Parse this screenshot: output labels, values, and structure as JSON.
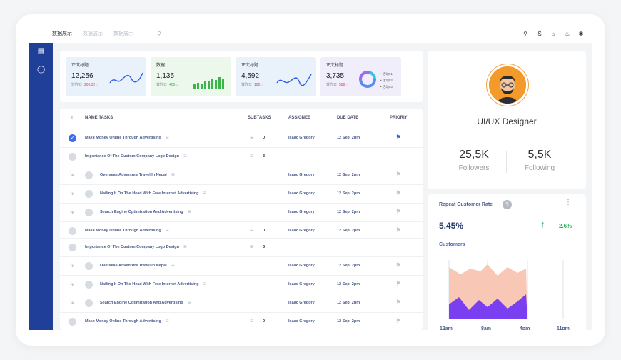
{
  "topbar": {
    "tabs": [
      "数据展示",
      "数据展示",
      "数据展示"
    ],
    "icons": [
      "search-icon",
      "translate-icon",
      "brightness-icon",
      "bell-icon",
      "settings-icon"
    ]
  },
  "sidebar": {
    "icons": [
      "document-icon",
      "bulb-icon"
    ]
  },
  "stats": [
    {
      "title": "正文标题",
      "value": "12,256",
      "sub": "较昨日",
      "delta": "206.32 ↑",
      "bg": "#e9f1fb",
      "chart": "wave"
    },
    {
      "title": "数据",
      "value": "1,135",
      "sub": "较昨日",
      "delta": "405 ↓",
      "bg": "#ecf8ec",
      "chart": "bars"
    },
    {
      "title": "正文标题",
      "value": "4,592",
      "sub": "较昨日",
      "delta": "122 ↑",
      "bg": "#e9f1fb",
      "chart": "wave"
    },
    {
      "title": "正文标题",
      "value": "3,735",
      "sub": "较昨日",
      "delta": "588 ↑",
      "bg": "#f1eefb",
      "chart": "donut",
      "legend": [
        "活动01",
        "活动02",
        "活动03"
      ]
    }
  ],
  "tasks": {
    "headers": {
      "name": "NAME TASKS",
      "subtasks": "SUBTASKS",
      "assignee": "ASSIGNEE",
      "due": "DUE DATE",
      "priority": "PRIORIY"
    },
    "rows": [
      {
        "name": "Make Money Online Through Advertising",
        "sub": false,
        "done": true,
        "count": "0",
        "assignee": "Isaac Gregory",
        "due": "12 Sep, 2pm",
        "flag": "blue"
      },
      {
        "name": "Importance Of The Custom Company Logo Design",
        "sub": false,
        "done": false,
        "count": "3",
        "assignee": "",
        "due": "",
        "flag": ""
      },
      {
        "name": "Overseas Adventure Travel In Nepal",
        "sub": true,
        "done": false,
        "count": "",
        "assignee": "Isaac Gregory",
        "due": "12 Sep, 2pm",
        "flag": "grey"
      },
      {
        "name": "Nailing It On The Head With Free Internet Advertising",
        "sub": true,
        "done": false,
        "count": "",
        "assignee": "Isaac Gregory",
        "due": "12 Sep, 2pm",
        "flag": "grey"
      },
      {
        "name": "Search Engine Optimization And Advertising",
        "sub": true,
        "done": false,
        "count": "",
        "assignee": "Isaac Gregory",
        "due": "12 Sep, 2pm",
        "flag": "grey"
      },
      {
        "name": "Make Money Online Through Advertising",
        "sub": false,
        "done": false,
        "count": "0",
        "assignee": "Isaac Gregory",
        "due": "12 Sep, 2pm",
        "flag": "grey"
      },
      {
        "name": "Importance Of The Custom Company Logo Design",
        "sub": false,
        "done": false,
        "count": "3",
        "assignee": "",
        "due": "",
        "flag": ""
      },
      {
        "name": "Overseas Adventure Travel In Nepal",
        "sub": true,
        "done": false,
        "count": "",
        "assignee": "Isaac Gregory",
        "due": "12 Sep, 2pm",
        "flag": "grey"
      },
      {
        "name": "Nailing It On The Head With Free Internet Advertising",
        "sub": true,
        "done": false,
        "count": "",
        "assignee": "Isaac Gregory",
        "due": "12 Sep, 2pm",
        "flag": "grey"
      },
      {
        "name": "Search Engine Optimization And Advertising",
        "sub": true,
        "done": false,
        "count": "",
        "assignee": "Isaac Gregory",
        "due": "12 Sep, 2pm",
        "flag": "grey"
      },
      {
        "name": "Make Money Online Through Advertising",
        "sub": false,
        "done": false,
        "count": "0",
        "assignee": "Isaac Gregory",
        "due": "12 Sep, 2pm",
        "flag": "grey"
      }
    ]
  },
  "profile": {
    "role": "UI/UX Designer",
    "followers_value": "25,5K",
    "followers_label": "Followers",
    "following_value": "5,5K",
    "following_label": "Following"
  },
  "rate": {
    "title": "Repeat Customer Rate",
    "value": "5.45%",
    "change": "2.6%",
    "customers_label": "Customers",
    "x_labels": [
      "12am",
      "8am",
      "4pm",
      "11pm"
    ]
  },
  "colors": {
    "brand": "#1f3f98",
    "accent": "#3b6ff0",
    "up": "#2eb062",
    "down": "#e0454a"
  }
}
